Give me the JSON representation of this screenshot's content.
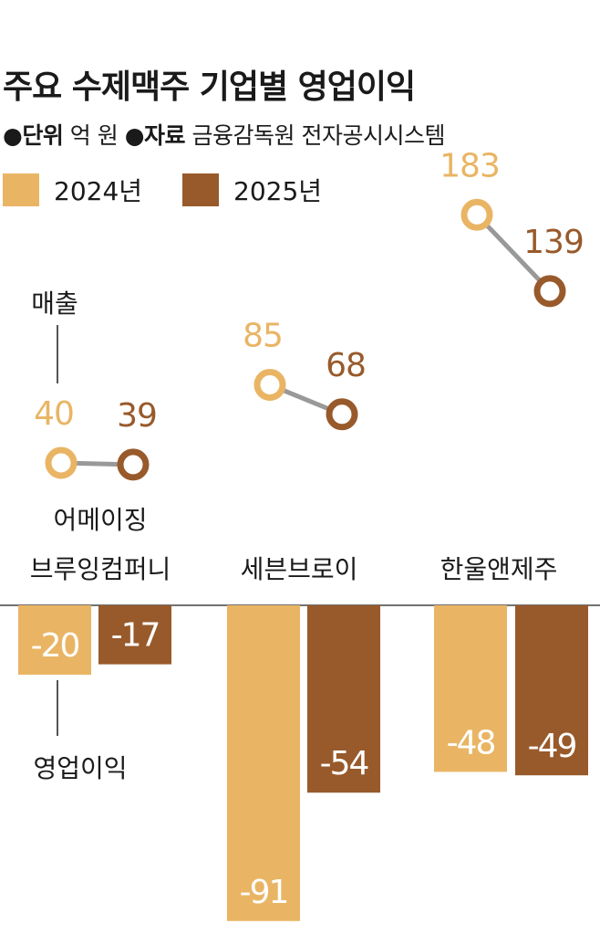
{
  "header": {
    "title": "주요 수제맥주 기업별 영업이익",
    "unit_marker": "●",
    "unit_label": "단위",
    "unit_value": "억 원",
    "source_marker": "●",
    "source_label": "자료",
    "source_value": "금융감독원 전자공시시스템"
  },
  "colors": {
    "y2024": "#e9b564",
    "y2025": "#985a2b",
    "connector": "#999999"
  },
  "chart_data": {
    "type": "bar",
    "legend": [
      "2024년",
      "2025년"
    ],
    "categories": [
      "어메이징 브루잉컴퍼니",
      "세븐브로이",
      "한울앤제주"
    ],
    "category_lines": [
      [
        "어메이징",
        "브루잉컴퍼니"
      ],
      [
        "세븐브로이"
      ],
      [
        "한울앤제주"
      ]
    ],
    "series": [
      {
        "name": "2024년",
        "values": [
          -20,
          -91,
          -48
        ]
      },
      {
        "name": "2025년",
        "values": [
          -17,
          -54,
          -49
        ]
      }
    ],
    "revenue_series": [
      {
        "name": "2024년",
        "values": [
          40,
          85,
          183
        ]
      },
      {
        "name": "2025년",
        "values": [
          39,
          68,
          139
        ]
      }
    ],
    "annotations": {
      "revenue": "매출",
      "operating_profit": "영업이익"
    }
  }
}
